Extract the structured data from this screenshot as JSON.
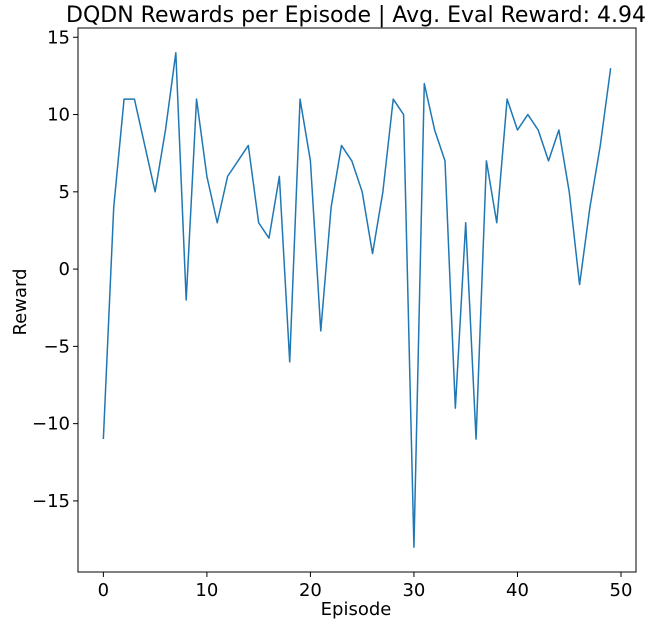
{
  "chart_data": {
    "type": "line",
    "title": "DQDN Rewards per Episode | Avg. Eval Reward: 4.94",
    "xlabel": "Episode",
    "ylabel": "Reward",
    "xlim": [
      -2.45,
      51.45
    ],
    "ylim": [
      -19.6,
      15.6
    ],
    "xticks": [
      0,
      10,
      20,
      30,
      40,
      50
    ],
    "yticks": [
      -15,
      -10,
      -5,
      0,
      5,
      10,
      15
    ],
    "grid": false,
    "series": [
      {
        "color": "#1f77b4",
        "x": [
          0,
          1,
          2,
          3,
          4,
          5,
          6,
          7,
          8,
          9,
          10,
          11,
          12,
          13,
          14,
          15,
          16,
          17,
          18,
          19,
          20,
          21,
          22,
          23,
          24,
          25,
          26,
          27,
          28,
          29,
          30,
          31,
          32,
          33,
          34,
          35,
          36,
          37,
          38,
          39,
          40,
          41,
          42,
          43,
          44,
          45,
          46,
          47,
          48,
          49
        ],
        "y": [
          -11,
          4,
          11,
          11,
          8,
          5,
          9,
          14,
          -2,
          11,
          6,
          3,
          6,
          7,
          8,
          3,
          2,
          6,
          -6,
          11,
          7,
          -4,
          4,
          8,
          7,
          5,
          1,
          5,
          11,
          10,
          -18,
          12,
          9,
          7,
          -9,
          3,
          -11,
          7,
          3,
          11,
          9,
          10,
          9,
          7,
          9,
          5,
          -1,
          4,
          8,
          13
        ]
      }
    ]
  }
}
